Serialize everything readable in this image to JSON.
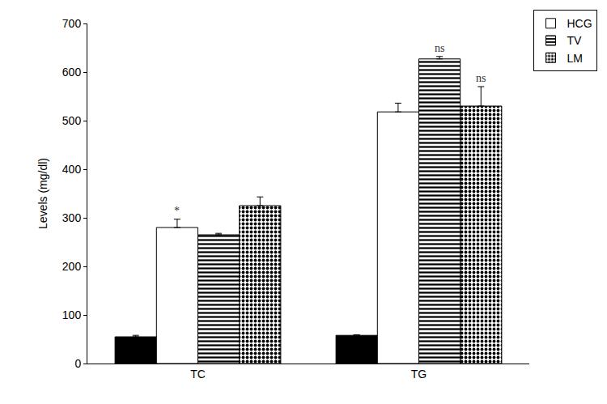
{
  "chart_data": {
    "type": "bar",
    "y_label": "Levels (mg/dl)",
    "categories": [
      "TC",
      "TG"
    ],
    "series": [
      {
        "name": null,
        "color": "#000000",
        "marker": "solid",
        "values": [
          55,
          58
        ],
        "errors": [
          3,
          1
        ]
      },
      {
        "name": "HCG",
        "color": "#ffffff",
        "marker": "solid",
        "values": [
          280,
          518
        ],
        "errors": [
          17,
          18
        ]
      },
      {
        "name": "TV",
        "color": "#ffffff",
        "marker": "horizontal_stripes",
        "values": [
          265,
          627
        ],
        "errors": [
          3,
          5
        ]
      },
      {
        "name": "LM",
        "color": "#ffffff",
        "marker": "dots",
        "values": [
          325,
          530
        ],
        "errors": [
          18,
          40
        ]
      }
    ],
    "annotations": [
      {
        "series": "HCG",
        "category": "TC",
        "text": "*"
      },
      {
        "series": "TV",
        "category": "TG",
        "text": "ns"
      },
      {
        "series": "LM",
        "category": "TG",
        "text": "ns"
      }
    ],
    "ylim": [
      0,
      700
    ],
    "yticks": [
      0,
      100,
      200,
      300,
      400,
      500,
      600,
      700
    ],
    "grid": false,
    "legend": "top right"
  }
}
